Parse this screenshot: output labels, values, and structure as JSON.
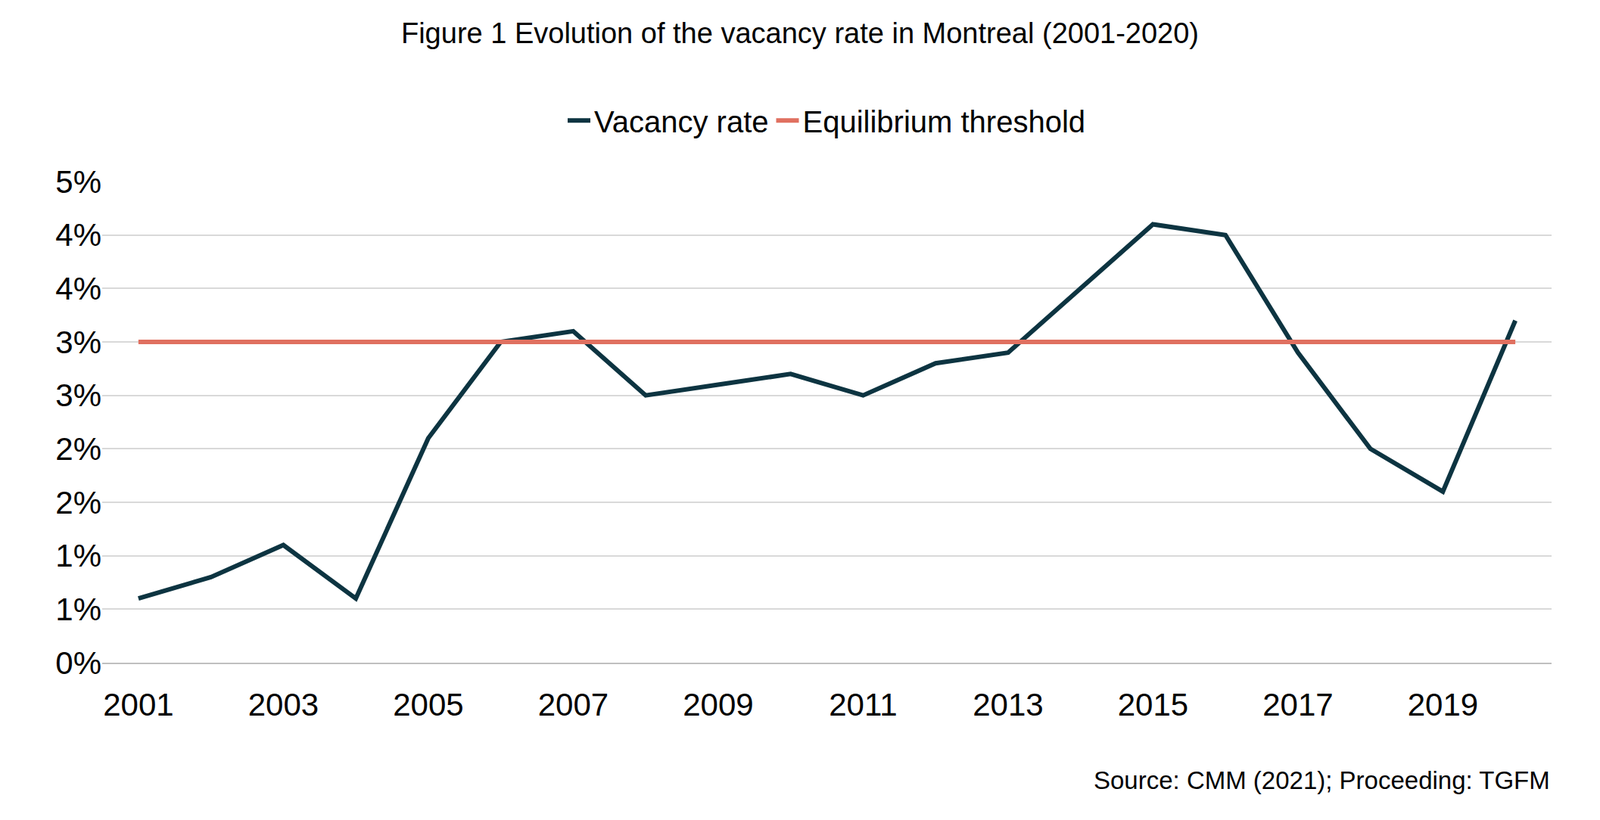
{
  "chart_data": {
    "type": "line",
    "title": "Figure 1 Evolution of the vacancy rate in Montreal (2001-2020)",
    "x": [
      2001,
      2002,
      2003,
      2004,
      2005,
      2006,
      2007,
      2008,
      2009,
      2010,
      2011,
      2012,
      2013,
      2014,
      2015,
      2016,
      2017,
      2018,
      2019,
      2020
    ],
    "series": [
      {
        "name": "Vacancy rate",
        "color": "#0d3441",
        "values": [
          0.6,
          0.8,
          1.1,
          0.6,
          2.1,
          3.0,
          3.1,
          2.5,
          2.6,
          2.7,
          2.5,
          2.8,
          2.9,
          3.5,
          4.1,
          4.0,
          2.9,
          2.0,
          1.6,
          3.2
        ]
      },
      {
        "name": "Equilibrium threshold",
        "color": "#e07060",
        "values": [
          3.0,
          3.0,
          3.0,
          3.0,
          3.0,
          3.0,
          3.0,
          3.0,
          3.0,
          3.0,
          3.0,
          3.0,
          3.0,
          3.0,
          3.0,
          3.0,
          3.0,
          3.0,
          3.0,
          3.0
        ]
      }
    ],
    "xlim": [
      2000.5,
      2020.5
    ],
    "xticks": [
      2001,
      2003,
      2005,
      2007,
      2009,
      2011,
      2013,
      2015,
      2017,
      2019
    ],
    "ylim": [
      0,
      4.5
    ],
    "yticks": [
      {
        "value": 0,
        "label": "0%"
      },
      {
        "value": 0.5,
        "label": "1%"
      },
      {
        "value": 1.0,
        "label": "1%"
      },
      {
        "value": 1.5,
        "label": "2%"
      },
      {
        "value": 2.0,
        "label": "2%"
      },
      {
        "value": 2.5,
        "label": "3%"
      },
      {
        "value": 3.0,
        "label": "3%"
      },
      {
        "value": 3.5,
        "label": "4%"
      },
      {
        "value": 4.0,
        "label": "4%"
      },
      {
        "value": 4.5,
        "label": "5%"
      }
    ],
    "grid": true,
    "legend": "top",
    "annotations": [
      "Source: CMM (2021); Proceeding: TGFM"
    ]
  }
}
